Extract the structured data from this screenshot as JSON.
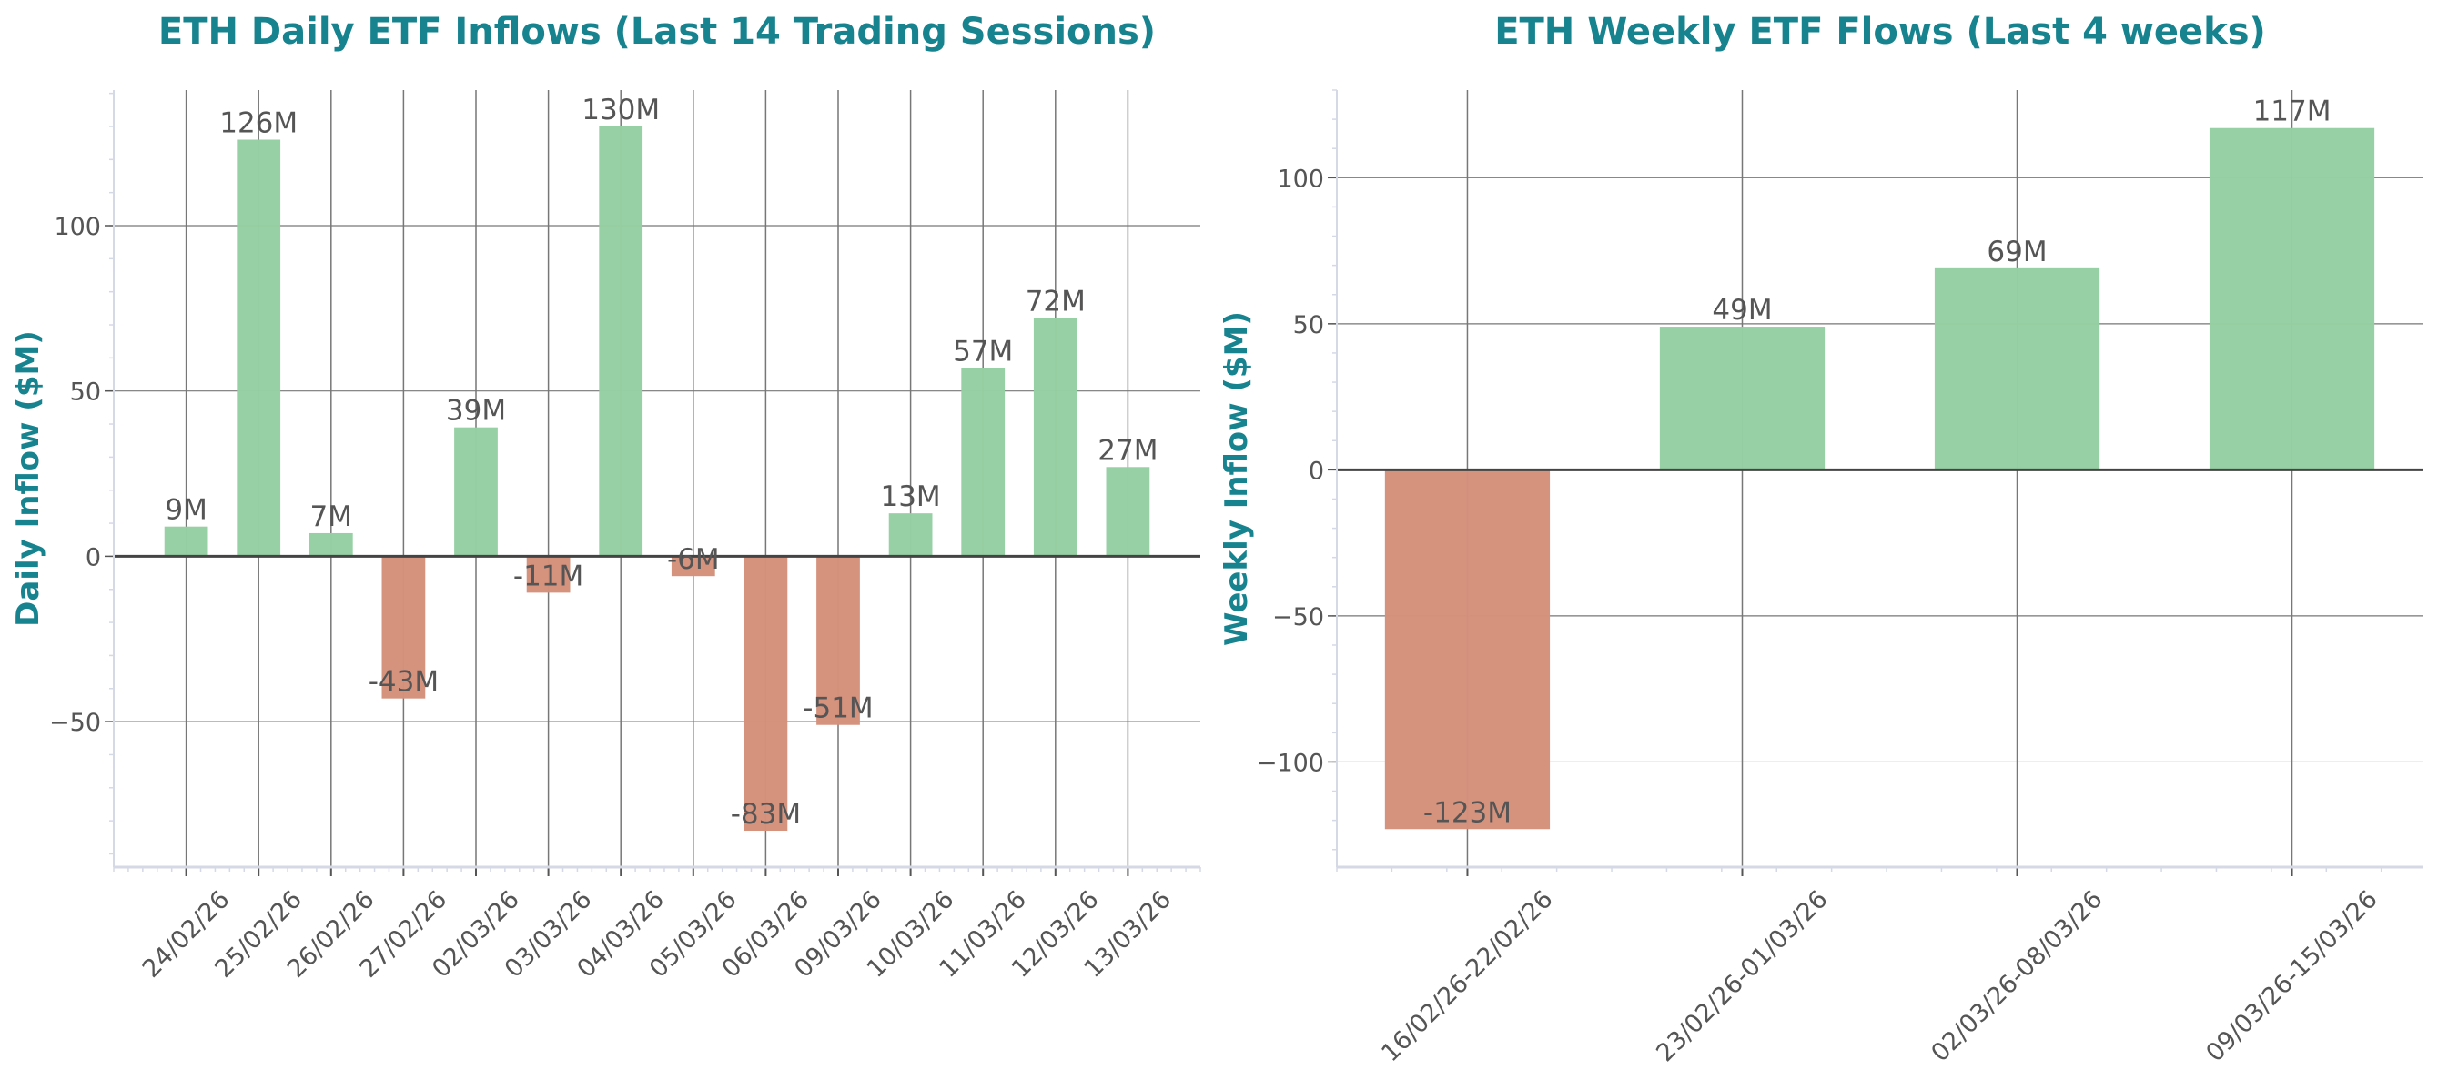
{
  "colors": {
    "positive": "#95cfa2",
    "negative": "#d4917b",
    "title": "#16838f",
    "grid": "#777777",
    "spine": "#d5d9e6"
  },
  "chart_data": [
    {
      "type": "bar",
      "title": "ETH Daily ETF Inflows (Last 14 Trading Sessions)",
      "xlabel": "",
      "ylabel": "Daily Inflow ($M)",
      "categories": [
        "24/02/26",
        "25/02/26",
        "26/02/26",
        "27/02/26",
        "02/03/26",
        "03/03/26",
        "04/03/26",
        "05/03/26",
        "06/03/26",
        "09/03/26",
        "10/03/26",
        "11/03/26",
        "12/03/26",
        "13/03/26"
      ],
      "values": [
        9,
        126,
        7,
        -43,
        39,
        -11,
        130,
        -6,
        -83,
        -51,
        13,
        57,
        72,
        27
      ],
      "data_labels": [
        "9M",
        "126M",
        "7M",
        "-43M",
        "39M",
        "-11M",
        "130M",
        "-6M",
        "-83M",
        "-51M",
        "13M",
        "57M",
        "72M",
        "27M"
      ],
      "yticks": [
        -50,
        0,
        50,
        100
      ],
      "ytick_labels": [
        "−50",
        "0",
        "50",
        "100"
      ],
      "ylim": [
        -94,
        141
      ],
      "xlim": [
        -1,
        14
      ],
      "grid": true
    },
    {
      "type": "bar",
      "title": "ETH Weekly ETF Flows (Last 4 weeks)",
      "xlabel": "",
      "ylabel": "Weekly Inflow ($M)",
      "categories": [
        "16/02/26-22/02/26",
        "23/02/26-01/03/26",
        "02/03/26-08/03/26",
        "09/03/26-15/03/26"
      ],
      "values": [
        -123,
        49,
        69,
        117
      ],
      "data_labels": [
        "-123M",
        "49M",
        "69M",
        "117M"
      ],
      "yticks": [
        -100,
        -50,
        0,
        50,
        100
      ],
      "ytick_labels": [
        "−100",
        "−50",
        "0",
        "50",
        "100"
      ],
      "ylim": [
        -136,
        130
      ],
      "xlim": [
        -0.475,
        3.475
      ],
      "grid": true
    }
  ]
}
